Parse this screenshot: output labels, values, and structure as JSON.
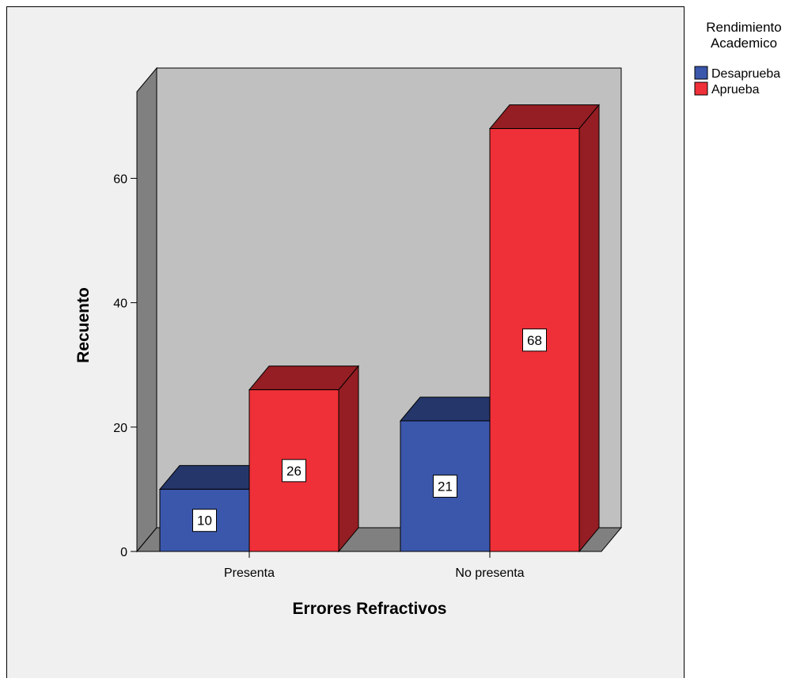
{
  "chart_data": {
    "type": "bar",
    "title": "",
    "xlabel": "Errores Refractivos",
    "ylabel": "Recuento",
    "categories": [
      "Presenta",
      "No presenta"
    ],
    "series": [
      {
        "name": "Desaprueba",
        "values": [
          10,
          21
        ],
        "color": "#3b57ab"
      },
      {
        "name": "Aprueba",
        "values": [
          26,
          68
        ],
        "color": "#ef3038"
      }
    ],
    "yticks": [
      0,
      20,
      40,
      60
    ],
    "ylim": [
      0,
      75
    ],
    "legend": {
      "title_line1": "Rendimiento",
      "title_line2": "Academico",
      "position": "top-right"
    },
    "data_labels": true,
    "three_d": true,
    "colors": {
      "plot_background": "#f0f0f0",
      "back_wall": "#c0c0c0",
      "side_wall": "#808080",
      "floor": "#808080"
    }
  }
}
